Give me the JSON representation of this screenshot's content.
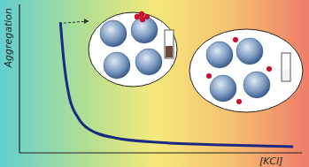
{
  "chart_data": {
    "type": "line",
    "x_label": "[KCl]",
    "y_label": "Aggregation",
    "x": [
      1.45,
      1.57,
      1.76,
      2.08,
      2.45,
      3.4,
      5.0,
      7.17,
      9.69
    ],
    "values": [
      8.8,
      6.2,
      3.8,
      2.35,
      1.6,
      1.0,
      0.7,
      0.53,
      0.41
    ],
    "color": "#1a2a80",
    "xlim": [
      0,
      10
    ],
    "ylim": [
      0,
      10
    ],
    "tick_labels": false,
    "grid": false
  }
}
